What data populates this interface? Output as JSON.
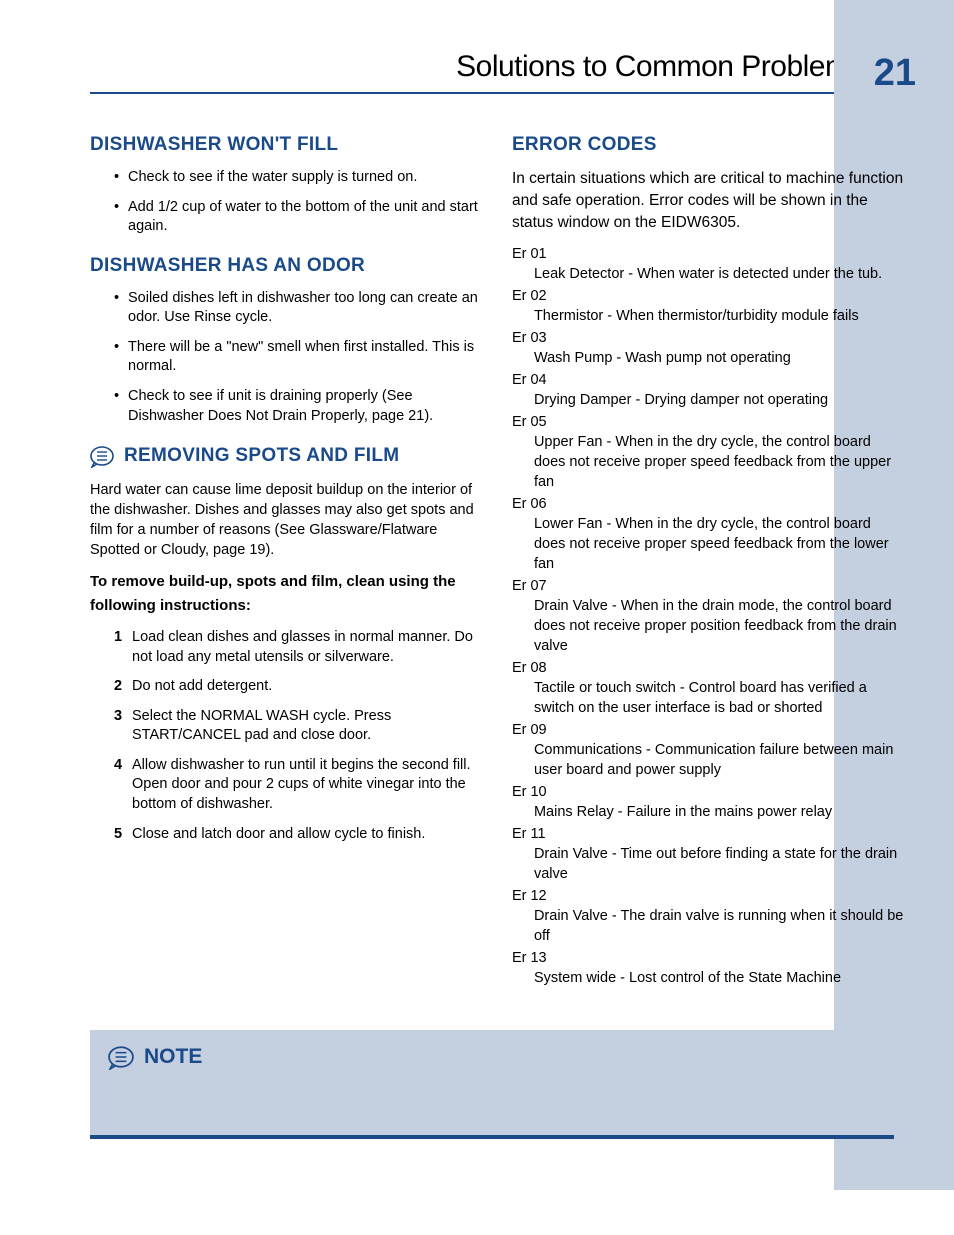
{
  "colors": {
    "accent": "#1a4a8a",
    "sidebar": "#c4cfe0",
    "text": "#000000",
    "bg": "#ffffff"
  },
  "typography": {
    "title_fontsize": 30,
    "pagenum_fontsize": 38,
    "h2_fontsize": 19,
    "body_fontsize": 14.5,
    "intro_fontsize": 15.5
  },
  "header": {
    "title": "Solutions to Common Problems",
    "page_number": "21"
  },
  "left": {
    "s1_title": "DISHWASHER WON'T FILL",
    "s1_items": [
      "Check to see if the water supply is turned on.",
      "Add 1/2 cup of water to the bottom of the unit and start again."
    ],
    "s2_title": "DISHWASHER HAS AN ODOR",
    "s2_items": [
      "Soiled dishes left in dishwasher too long can create an odor. Use Rinse cycle.",
      "There will be a \"new\" smell when first installed. This is normal.",
      "Check to see if unit is draining properly (See Dishwasher Does Not Drain Properly, page 21)."
    ],
    "s3_title": "REMOVING SPOTS AND FILM",
    "s3_para": "Hard water can cause lime deposit buildup on the interior of the dishwasher. Dishes and glasses may also get spots and film for a number of reasons (See Glassware/Flatware Spotted or Cloudy, page 19).",
    "s3_sub": "To remove build-up, spots and film, clean using the following instructions:",
    "s3_items": [
      "Load clean dishes and glasses in normal manner. Do not load any metal utensils or silverware.",
      "Do not add detergent.",
      "Select the NORMAL WASH cycle. Press START/CANCEL pad and close door.",
      "Allow dishwasher to run until it begins the second fill. Open door and pour 2 cups of white vinegar into the bottom of dishwasher.",
      "Close and latch door and allow cycle to finish."
    ]
  },
  "right": {
    "title": "ERROR CODES",
    "intro": "In certain situations which are critical to machine function and safe operation. Error codes will be shown in the status window on the EIDW6305.",
    "errors": [
      {
        "code": "Er 01",
        "desc": "Leak Detector - When water is detected under the tub."
      },
      {
        "code": "Er 02",
        "desc": "Thermistor - When thermistor/turbidity module fails"
      },
      {
        "code": "Er 03",
        "desc": "Wash Pump - Wash pump not operating"
      },
      {
        "code": "Er 04",
        "desc": "Drying Damper - Drying damper not operating"
      },
      {
        "code": "Er 05",
        "desc": "Upper Fan - When in the dry cycle, the control board does not receive proper speed feedback from the upper fan"
      },
      {
        "code": "Er 06",
        "desc": "Lower Fan - When in the dry cycle, the control board does not receive proper speed feedback from the lower fan"
      },
      {
        "code": "Er 07",
        "desc": "Drain Valve - When in the drain mode, the control board does not receive proper position feedback from the drain valve"
      },
      {
        "code": "Er 08",
        "desc": "Tactile or touch switch - Control board has verified a switch on the user interface is bad or shorted"
      },
      {
        "code": "Er 09",
        "desc": "Communications - Communication failure between main user board and power supply"
      },
      {
        "code": "Er 10",
        "desc": "Mains Relay - Failure in the mains power relay"
      },
      {
        "code": "Er 11",
        "desc": "Drain Valve - Time out before finding a state for the drain valve"
      },
      {
        "code": "Er 12",
        "desc": "Drain Valve -  The drain valve is running when it should be off"
      },
      {
        "code": "Er 13",
        "desc": "System wide - Lost control of the State Machine"
      }
    ]
  },
  "note": {
    "title": "NOTE"
  }
}
